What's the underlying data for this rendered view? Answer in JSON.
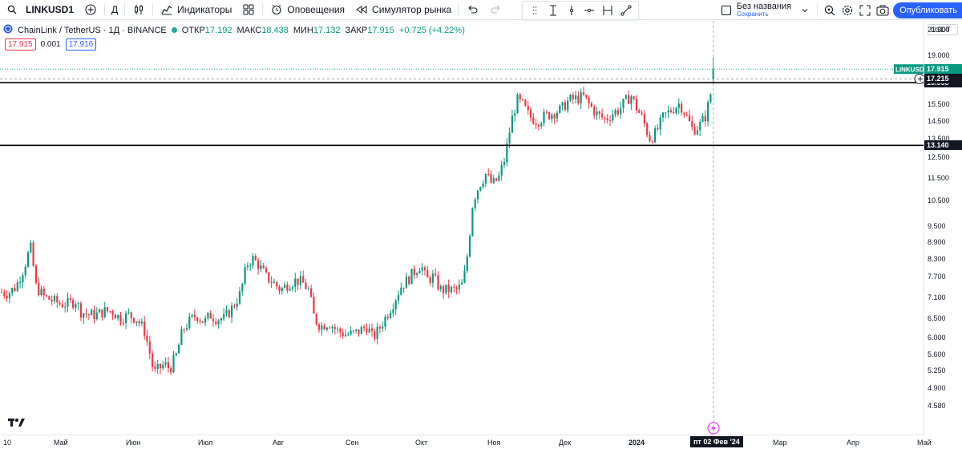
{
  "toolbar": {
    "symbol": "LINKUSD1",
    "interval": "Д",
    "indicators_label": "Индикаторы",
    "alerts_label": "Оповещения",
    "replay_label": "Симулятор рынка",
    "layout_name": "Без названия",
    "layout_saved": "Сохранить",
    "publish_label": "Опубликовать"
  },
  "legend": {
    "title": "ChainLink / TetherUS · 1Д · BINANCE",
    "open_label": "ОТКР",
    "open": "17.192",
    "high_label": "МАКС",
    "high": "18.438",
    "low_label": "МИН",
    "low": "17.132",
    "close_label": "ЗАКР",
    "close": "17.915",
    "change": "+0.725 (+4.22%)",
    "sell": "17.915",
    "spread": "0.001",
    "buy": "17.916"
  },
  "price_scale": {
    "currency": "USDT",
    "ticks": [
      "21.000",
      "19.000",
      "15.500",
      "14.500",
      "13.500",
      "12.500",
      "11.500",
      "10.500",
      "9.500",
      "8.900",
      "8.300",
      "7.700",
      "7.100",
      "6.500",
      "6.000",
      "5.600",
      "5.250",
      "4.900",
      "4.580"
    ],
    "symbol_tag": "LINKUSDT",
    "last_price": "17.915",
    "crosshair_price": "17.215",
    "level_upper": "16.958",
    "level_lower": "13.140"
  },
  "time_scale": {
    "labels": [
      "10",
      "Май",
      "Июн",
      "Июл",
      "Авг",
      "Сен",
      "Окт",
      "Ноя",
      "Дек",
      "2024",
      "Мар",
      "Апр",
      "Май"
    ],
    "crosshair_date": "пт 02 Фев '24"
  },
  "colors": {
    "up": "#089981",
    "down": "#f23645",
    "accent": "#2962ff"
  },
  "chart_data": {
    "type": "candlestick",
    "title": "ChainLink / TetherUS · 1Д · BINANCE",
    "ylim": [
      4.58,
      22.0
    ],
    "horizontal_levels": [
      16.958,
      13.14
    ],
    "close_path": [
      [
        0,
        7.25
      ],
      [
        10,
        7.2
      ],
      [
        20,
        7.4
      ],
      [
        30,
        8.0
      ],
      [
        38,
        8.7
      ],
      [
        45,
        7.4
      ],
      [
        55,
        7.1
      ],
      [
        65,
        7.0
      ],
      [
        75,
        6.9
      ],
      [
        85,
        6.9
      ],
      [
        95,
        7.0
      ],
      [
        100,
        6.7
      ],
      [
        110,
        6.6
      ],
      [
        120,
        6.6
      ],
      [
        130,
        6.7
      ],
      [
        140,
        6.7
      ],
      [
        150,
        6.5
      ],
      [
        160,
        6.6
      ],
      [
        170,
        6.5
      ],
      [
        180,
        6.2
      ],
      [
        185,
        5.8
      ],
      [
        192,
        5.2
      ],
      [
        198,
        5.3
      ],
      [
        205,
        5.4
      ],
      [
        212,
        5.3
      ],
      [
        220,
        5.6
      ],
      [
        228,
        6.2
      ],
      [
        235,
        6.4
      ],
      [
        245,
        6.6
      ],
      [
        255,
        6.4
      ],
      [
        262,
        6.6
      ],
      [
        270,
        6.5
      ],
      [
        280,
        6.5
      ],
      [
        290,
        6.8
      ],
      [
        300,
        7.2
      ],
      [
        308,
        8.1
      ],
      [
        315,
        8.3
      ],
      [
        322,
        8.1
      ],
      [
        332,
        7.7
      ],
      [
        342,
        7.5
      ],
      [
        350,
        7.3
      ],
      [
        360,
        7.5
      ],
      [
        370,
        7.6
      ],
      [
        378,
        7.5
      ],
      [
        385,
        7.3
      ],
      [
        392,
        6.5
      ],
      [
        400,
        6.3
      ],
      [
        410,
        6.4
      ],
      [
        420,
        6.2
      ],
      [
        430,
        6.1
      ],
      [
        440,
        6.1
      ],
      [
        450,
        6.2
      ],
      [
        458,
        6.3
      ],
      [
        465,
        6.0
      ],
      [
        472,
        6.2
      ],
      [
        480,
        6.5
      ],
      [
        490,
        6.9
      ],
      [
        500,
        7.4
      ],
      [
        508,
        7.6
      ],
      [
        518,
        7.9
      ],
      [
        525,
        8.1
      ],
      [
        532,
        7.6
      ],
      [
        540,
        7.7
      ],
      [
        550,
        7.3
      ],
      [
        560,
        7.3
      ],
      [
        570,
        7.3
      ],
      [
        578,
        7.5
      ],
      [
        584,
        8.6
      ],
      [
        590,
        10.5
      ],
      [
        598,
        11.2
      ],
      [
        606,
        11.7
      ],
      [
        614,
        11.2
      ],
      [
        622,
        11.5
      ],
      [
        630,
        12.5
      ],
      [
        638,
        14.5
      ],
      [
        645,
        15.8
      ],
      [
        652,
        15.5
      ],
      [
        660,
        14.8
      ],
      [
        670,
        14.5
      ],
      [
        680,
        14.8
      ],
      [
        690,
        15.0
      ],
      [
        700,
        15.2
      ],
      [
        710,
        15.8
      ],
      [
        720,
        15.9
      ],
      [
        728,
        16.0
      ],
      [
        735,
        15.5
      ],
      [
        745,
        14.9
      ],
      [
        755,
        14.6
      ],
      [
        765,
        15.0
      ],
      [
        772,
        15.2
      ],
      [
        780,
        15.7
      ],
      [
        787,
        16.1
      ],
      [
        795,
        15.2
      ],
      [
        802,
        14.6
      ],
      [
        810,
        13.5
      ],
      [
        818,
        13.8
      ],
      [
        828,
        14.8
      ],
      [
        838,
        15.2
      ],
      [
        848,
        15.6
      ],
      [
        856,
        14.8
      ],
      [
        864,
        14.0
      ],
      [
        872,
        14.2
      ],
      [
        880,
        14.8
      ],
      [
        886,
        16.0
      ],
      [
        890,
        17.9
      ]
    ]
  }
}
